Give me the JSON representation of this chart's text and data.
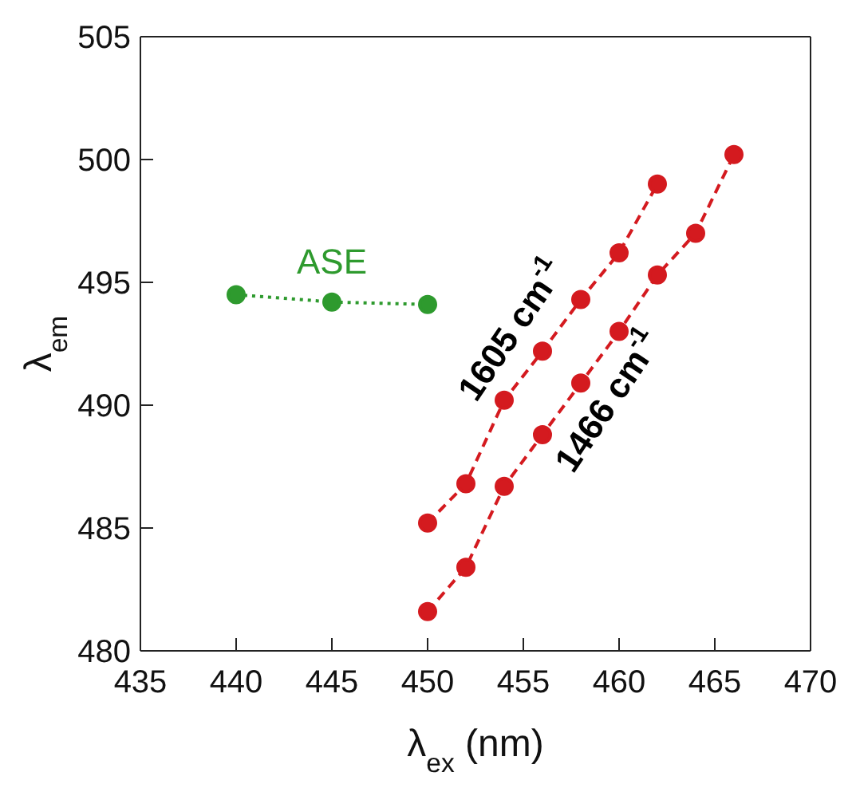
{
  "chart_data": {
    "type": "line",
    "xlabel": "λ$_{ex}$ (nm)",
    "ylabel": "λ$_{em}$",
    "xlim": [
      435,
      470
    ],
    "xticks": [
      435,
      440,
      445,
      450,
      455,
      460,
      465,
      470
    ],
    "ylim": [
      480,
      505
    ],
    "yticks": [
      480,
      485,
      490,
      495,
      500,
      505
    ],
    "grid": false,
    "legend": false,
    "marker": "circle",
    "series": [
      {
        "name": "ASE",
        "color": "#2e9a2e",
        "line_style": "dotted",
        "x": [
          440,
          445,
          450
        ],
        "values": [
          494.5,
          494.2,
          494.1
        ]
      },
      {
        "name": "1605 cm$^{-1}$",
        "color": "#d41a1f",
        "line_style": "dashed",
        "x": [
          450,
          452,
          454,
          456,
          458,
          460,
          462
        ],
        "values": [
          485.2,
          486.8,
          490.2,
          492.2,
          494.3,
          496.2,
          499.0
        ]
      },
      {
        "name": "1466 cm$^{-1}$",
        "color": "#d41a1f",
        "line_style": "dashed",
        "x": [
          450,
          452,
          454,
          456,
          458,
          460,
          462,
          464,
          466
        ],
        "values": [
          481.6,
          483.4,
          486.7,
          488.8,
          490.9,
          493.0,
          495.3,
          497.0,
          500.2
        ]
      }
    ]
  }
}
